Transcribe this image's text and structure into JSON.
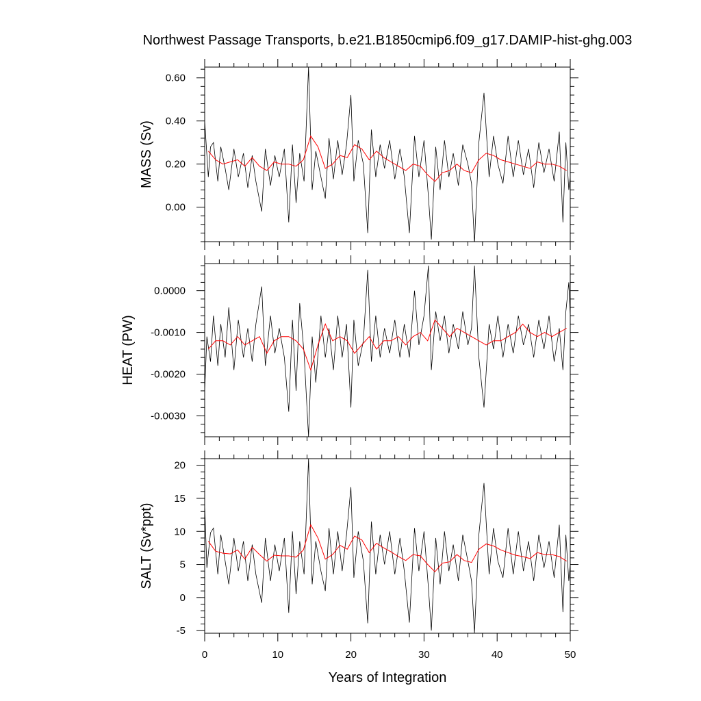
{
  "title": "Northwest Passage Transports, b.e21.B1850cmip6.f09_g17.DAMIP-hist-ghg.003",
  "xlabel": "Years of Integration",
  "colors": {
    "raw": "#000000",
    "smooth": "#ff0000"
  },
  "chart_data": [
    {
      "type": "line",
      "panel": "mass",
      "ylabel": "MASS (Sv)",
      "xlim": [
        0,
        50
      ],
      "ylim": [
        -0.16,
        0.65
      ],
      "x_ticks": [
        0,
        10,
        20,
        30,
        40,
        50
      ],
      "x_tick_labels": [
        "0",
        "10",
        "20",
        "30",
        "40",
        "50"
      ],
      "y_ticks": [
        0.0,
        0.2,
        0.4,
        0.6
      ],
      "y_tick_labels": [
        "0.00",
        "0.20",
        "0.40",
        "0.60"
      ],
      "series": [
        {
          "role": "annual-mean",
          "x": [
            0.5,
            1.5,
            2.5,
            3.5,
            4.5,
            5.5,
            6.5,
            7.5,
            8.5,
            9.5,
            10.5,
            11.5,
            12.5,
            13.5,
            14.5,
            15.5,
            16.5,
            17.5,
            18.5,
            19.5,
            20.5,
            21.5,
            22.5,
            23.5,
            24.5,
            25.5,
            26.5,
            27.5,
            28.5,
            29.5,
            30.5,
            31.5,
            32.5,
            33.5,
            34.5,
            35.5,
            36.5,
            37.5,
            38.5,
            39.5,
            40.5,
            41.5,
            42.5,
            43.5,
            44.5,
            45.5,
            46.5,
            47.5,
            48.5,
            49.5
          ],
          "values": [
            0.26,
            0.22,
            0.2,
            0.21,
            0.22,
            0.19,
            0.23,
            0.19,
            0.17,
            0.21,
            0.2,
            0.2,
            0.19,
            0.22,
            0.33,
            0.28,
            0.18,
            0.2,
            0.24,
            0.23,
            0.29,
            0.27,
            0.22,
            0.26,
            0.23,
            0.21,
            0.19,
            0.17,
            0.2,
            0.19,
            0.15,
            0.12,
            0.16,
            0.17,
            0.2,
            0.17,
            0.16,
            0.22,
            0.25,
            0.24,
            0.22,
            0.21,
            0.2,
            0.19,
            0.18,
            0.21,
            0.2,
            0.2,
            0.19,
            0.17
          ]
        },
        {
          "role": "monthly",
          "x": [
            0.0,
            0.5,
            0.8,
            1.2,
            1.8,
            2.2,
            2.8,
            3.3,
            4.0,
            4.6,
            5.3,
            5.9,
            6.5,
            7.0,
            7.8,
            8.3,
            9.0,
            9.6,
            10.2,
            10.9,
            11.5,
            12.0,
            12.5,
            13.0,
            13.6,
            14.2,
            14.7,
            15.2,
            15.9,
            16.5,
            17.0,
            17.6,
            18.2,
            18.8,
            19.4,
            20.0,
            20.4,
            21.0,
            21.7,
            22.3,
            22.8,
            23.4,
            24.0,
            24.6,
            25.3,
            26.0,
            26.7,
            27.3,
            28.0,
            28.7,
            29.3,
            30.0,
            30.6,
            31.0,
            31.6,
            32.2,
            32.8,
            33.4,
            34.0,
            34.7,
            35.3,
            36.0,
            36.5,
            36.9,
            37.5,
            38.2,
            38.9,
            39.5,
            40.1,
            40.8,
            41.5,
            42.2,
            42.9,
            43.6,
            44.3,
            45.0,
            45.7,
            46.4,
            47.1,
            47.8,
            48.5,
            49.0,
            49.4,
            49.8,
            50.0
          ],
          "values": [
            0.4,
            0.14,
            0.28,
            0.3,
            0.12,
            0.28,
            0.18,
            0.08,
            0.27,
            0.14,
            0.25,
            0.09,
            0.24,
            0.12,
            -0.02,
            0.27,
            0.1,
            0.24,
            0.14,
            0.27,
            -0.07,
            0.29,
            0.02,
            0.25,
            0.12,
            0.65,
            0.08,
            0.26,
            0.14,
            0.04,
            0.32,
            0.13,
            0.31,
            0.15,
            0.29,
            0.52,
            0.12,
            0.31,
            0.2,
            -0.12,
            0.36,
            0.14,
            0.29,
            0.18,
            0.31,
            0.13,
            0.27,
            0.14,
            -0.12,
            0.33,
            0.14,
            0.31,
            0.05,
            -0.15,
            0.28,
            0.08,
            0.31,
            0.14,
            0.25,
            0.1,
            0.29,
            0.2,
            0.11,
            -0.17,
            0.3,
            0.53,
            0.14,
            0.33,
            0.2,
            0.11,
            0.33,
            0.14,
            0.31,
            0.15,
            0.27,
            0.09,
            0.3,
            0.16,
            0.27,
            0.12,
            0.35,
            -0.07,
            0.3,
            0.08,
            0.14
          ]
        }
      ]
    },
    {
      "type": "line",
      "panel": "heat",
      "ylabel": "HEAT (PW)",
      "xlim": [
        0,
        50
      ],
      "ylim": [
        -0.0035,
        0.00065
      ],
      "x_ticks": [
        0,
        10,
        20,
        30,
        40,
        50
      ],
      "x_tick_labels": [
        "0",
        "10",
        "20",
        "30",
        "40",
        "50"
      ],
      "y_ticks": [
        -0.003,
        -0.002,
        -0.001,
        0.0
      ],
      "y_tick_labels": [
        "-0.0030",
        "-0.0020",
        "-0.0010",
        "0.0000"
      ],
      "series": [
        {
          "role": "annual-mean",
          "x": [
            0.5,
            1.5,
            2.5,
            3.5,
            4.5,
            5.5,
            6.5,
            7.5,
            8.5,
            9.5,
            10.5,
            11.5,
            12.5,
            13.5,
            14.5,
            15.5,
            16.5,
            17.5,
            18.5,
            19.5,
            20.5,
            21.5,
            22.5,
            23.5,
            24.5,
            25.5,
            26.5,
            27.5,
            28.5,
            29.5,
            30.5,
            31.5,
            32.5,
            33.5,
            34.5,
            35.5,
            36.5,
            37.5,
            38.5,
            39.5,
            40.5,
            41.5,
            42.5,
            43.5,
            44.5,
            45.5,
            46.5,
            47.5,
            48.5,
            49.5
          ],
          "values": [
            -0.0014,
            -0.0012,
            -0.0012,
            -0.0013,
            -0.0011,
            -0.0013,
            -0.0012,
            -0.0011,
            -0.0015,
            -0.0012,
            -0.0011,
            -0.0011,
            -0.0012,
            -0.0014,
            -0.0019,
            -0.0013,
            -0.0008,
            -0.0012,
            -0.0011,
            -0.0012,
            -0.0015,
            -0.0013,
            -0.0011,
            -0.0014,
            -0.0012,
            -0.0012,
            -0.0011,
            -0.0013,
            -0.0011,
            -0.001,
            -0.0012,
            -0.0007,
            -0.0009,
            -0.0011,
            -0.0009,
            -0.001,
            -0.0011,
            -0.0012,
            -0.0013,
            -0.0012,
            -0.0012,
            -0.0011,
            -0.001,
            -0.0008,
            -0.001,
            -0.0011,
            -0.001,
            -0.0011,
            -0.001,
            -0.0009
          ]
        },
        {
          "role": "monthly",
          "x": [
            0.0,
            0.3,
            0.8,
            1.2,
            1.8,
            2.2,
            2.8,
            3.3,
            4.0,
            4.6,
            5.3,
            5.9,
            6.5,
            7.0,
            7.8,
            8.3,
            9.0,
            9.6,
            10.2,
            10.9,
            11.5,
            12.0,
            12.5,
            13.0,
            13.6,
            14.2,
            14.7,
            15.2,
            15.9,
            16.5,
            17.0,
            17.6,
            18.2,
            18.8,
            19.4,
            20.0,
            20.4,
            21.0,
            21.7,
            22.3,
            22.8,
            23.4,
            24.0,
            24.6,
            25.3,
            26.0,
            26.7,
            27.3,
            28.0,
            28.7,
            29.3,
            30.0,
            30.6,
            31.0,
            31.6,
            32.2,
            32.8,
            33.4,
            34.0,
            34.7,
            35.3,
            36.0,
            36.5,
            36.9,
            37.5,
            38.2,
            38.9,
            39.5,
            40.1,
            40.8,
            41.5,
            42.2,
            42.9,
            43.6,
            44.3,
            45.0,
            45.7,
            46.4,
            47.1,
            47.8,
            48.5,
            49.0,
            49.4,
            49.8,
            50.0
          ],
          "values": [
            -0.0024,
            -0.0011,
            -0.0017,
            -0.0006,
            -0.0018,
            -0.0008,
            -0.0016,
            -0.0004,
            -0.0019,
            -0.0007,
            -0.0016,
            -0.0009,
            -0.0017,
            -0.0008,
            0.0001,
            -0.0018,
            -0.0006,
            -0.0015,
            -0.0009,
            -0.0016,
            -0.0029,
            -0.0007,
            -0.0024,
            -0.0003,
            -0.0015,
            -0.0035,
            -0.0011,
            -0.0022,
            -0.0006,
            -0.0016,
            -0.0009,
            -0.0019,
            -0.0006,
            -0.0016,
            -0.0008,
            -0.0028,
            -0.0007,
            -0.0018,
            -0.0012,
            0.0005,
            -0.0017,
            -0.0006,
            -0.0016,
            -0.0009,
            -0.0015,
            -0.0007,
            -0.0016,
            -0.0008,
            -0.0016,
            0.0,
            -0.0013,
            -0.0006,
            0.0006,
            -0.0019,
            -0.0005,
            -0.0012,
            -0.0006,
            -0.0015,
            -0.0008,
            -0.0014,
            -0.0005,
            -0.0013,
            -0.0009,
            0.0006,
            -0.0016,
            -0.0028,
            -0.0008,
            -0.0014,
            -0.0006,
            -0.0016,
            -0.0008,
            -0.0015,
            -0.0006,
            -0.0013,
            -0.0008,
            -0.0016,
            -0.0007,
            -0.0014,
            -0.0006,
            -0.0017,
            -0.0009,
            -0.0019,
            -0.0005,
            0.0002,
            -0.0006
          ]
        }
      ]
    },
    {
      "type": "line",
      "panel": "salt",
      "ylabel": "SALT (Sv*ppt)",
      "xlim": [
        0,
        50
      ],
      "ylim": [
        -5.4,
        21.0
      ],
      "x_ticks": [
        0,
        10,
        20,
        30,
        40,
        50
      ],
      "x_tick_labels": [
        "0",
        "10",
        "20",
        "30",
        "40",
        "50"
      ],
      "y_ticks": [
        -5,
        0,
        5,
        10,
        15,
        20
      ],
      "y_tick_labels": [
        "-5",
        "0",
        "5",
        "10",
        "15",
        "20"
      ],
      "series": [
        {
          "role": "annual-mean",
          "x": [
            0.5,
            1.5,
            2.5,
            3.5,
            4.5,
            5.5,
            6.5,
            7.5,
            8.5,
            9.5,
            10.5,
            11.5,
            12.5,
            13.5,
            14.5,
            15.5,
            16.5,
            17.5,
            18.5,
            19.5,
            20.5,
            21.5,
            22.5,
            23.5,
            24.5,
            25.5,
            26.5,
            27.5,
            28.5,
            29.5,
            30.5,
            31.5,
            32.5,
            33.5,
            34.5,
            35.5,
            36.5,
            37.5,
            38.5,
            39.5,
            40.5,
            41.5,
            42.5,
            43.5,
            44.5,
            45.5,
            46.5,
            47.5,
            48.5,
            49.5
          ],
          "values": [
            8.5,
            7.0,
            6.7,
            6.6,
            7.2,
            5.8,
            7.6,
            6.5,
            5.5,
            6.4,
            6.3,
            6.3,
            6.1,
            7.2,
            11.0,
            9.0,
            5.8,
            6.5,
            7.9,
            7.3,
            9.3,
            8.7,
            6.8,
            8.2,
            7.5,
            6.9,
            6.2,
            5.6,
            6.5,
            6.3,
            5.0,
            3.9,
            5.2,
            5.4,
            6.5,
            5.6,
            5.3,
            7.3,
            8.1,
            7.8,
            7.2,
            6.8,
            6.4,
            6.2,
            5.9,
            6.8,
            6.5,
            6.5,
            6.2,
            5.5
          ]
        },
        {
          "role": "monthly",
          "x": [
            0.0,
            0.3,
            0.8,
            1.2,
            1.8,
            2.2,
            2.8,
            3.3,
            4.0,
            4.6,
            5.3,
            5.9,
            6.5,
            7.0,
            7.8,
            8.3,
            9.0,
            9.6,
            10.2,
            10.9,
            11.5,
            12.0,
            12.5,
            13.0,
            13.6,
            14.2,
            14.7,
            15.2,
            15.9,
            16.5,
            17.0,
            17.6,
            18.2,
            18.8,
            19.4,
            20.0,
            20.4,
            21.0,
            21.7,
            22.3,
            22.8,
            23.4,
            24.0,
            24.6,
            25.3,
            26.0,
            26.7,
            27.3,
            28.0,
            28.7,
            29.3,
            30.0,
            30.6,
            31.0,
            31.6,
            32.2,
            32.8,
            33.4,
            34.0,
            34.7,
            35.3,
            36.0,
            36.5,
            36.9,
            37.5,
            38.2,
            38.9,
            39.5,
            40.1,
            40.8,
            41.5,
            42.2,
            42.9,
            43.6,
            44.3,
            45.0,
            45.7,
            46.4,
            47.1,
            47.8,
            48.5,
            49.0,
            49.4,
            49.8,
            50.0
          ],
          "values": [
            14.0,
            4.5,
            9.8,
            10.5,
            3.5,
            9.5,
            5.5,
            2.0,
            9.0,
            4.0,
            8.5,
            2.5,
            8.0,
            3.5,
            -0.8,
            9.0,
            2.5,
            8.0,
            4.0,
            9.0,
            -2.3,
            10.0,
            0.5,
            8.5,
            3.5,
            21.0,
            2.0,
            8.5,
            4.0,
            1.0,
            10.5,
            3.5,
            10.0,
            4.0,
            9.5,
            16.7,
            3.0,
            10.0,
            5.5,
            -3.9,
            11.5,
            3.5,
            9.5,
            5.0,
            10.0,
            3.5,
            9.0,
            4.0,
            -3.8,
            10.5,
            4.0,
            10.0,
            1.5,
            -5.0,
            9.0,
            2.0,
            10.0,
            4.0,
            8.0,
            2.5,
            9.5,
            5.5,
            2.5,
            -5.4,
            9.5,
            17.3,
            3.5,
            10.5,
            5.5,
            3.0,
            10.5,
            3.5,
            10.0,
            4.0,
            8.5,
            2.5,
            9.5,
            4.5,
            8.5,
            3.0,
            11.0,
            -2.2,
            9.5,
            2.5,
            5.0
          ]
        }
      ]
    }
  ]
}
